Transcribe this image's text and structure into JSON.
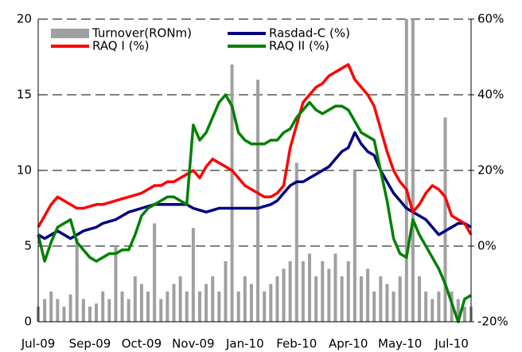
{
  "chart_data": {
    "type": "combo",
    "categories": [
      "Jul-09",
      null,
      null,
      null,
      null,
      null,
      null,
      null,
      "Sep-09",
      null,
      null,
      null,
      null,
      null,
      null,
      null,
      "Oct-09",
      null,
      null,
      null,
      null,
      null,
      null,
      null,
      "Nov-09",
      null,
      null,
      null,
      null,
      null,
      null,
      null,
      "Jan-10",
      null,
      null,
      null,
      null,
      null,
      null,
      null,
      "Feb-10",
      null,
      null,
      null,
      null,
      null,
      null,
      null,
      "Apr-10",
      null,
      null,
      null,
      null,
      null,
      null,
      null,
      "May-10",
      null,
      null,
      null,
      null,
      null,
      null,
      null,
      "Jul-10",
      null,
      null,
      null
    ],
    "ylim": [
      0,
      20
    ],
    "yticks": [
      0,
      5,
      10,
      15,
      20
    ],
    "y2lim": [
      -20,
      60
    ],
    "y2ticks": [
      {
        "value": -20,
        "label": "-20%"
      },
      {
        "value": 0,
        "label": "0%"
      },
      {
        "value": 20,
        "label": "20%"
      },
      {
        "value": 40,
        "label": "40%"
      },
      {
        "value": 60,
        "label": "60%"
      }
    ],
    "grid": true,
    "series": [
      {
        "name": "Turnover(RONm)",
        "type": "bar",
        "color": "#a0a0a0",
        "values": [
          1,
          1.5,
          2,
          1.5,
          1,
          1.8,
          5.5,
          1.5,
          1,
          1.2,
          2,
          1.5,
          5,
          2,
          1.5,
          3,
          2.5,
          2,
          6.5,
          1.5,
          2,
          2.5,
          3,
          2,
          6.2,
          2,
          2.5,
          3,
          2,
          4,
          17,
          2,
          3,
          2.5,
          16,
          2,
          2.5,
          3,
          3.5,
          4,
          10.5,
          4,
          4.5,
          3,
          4,
          3.5,
          4.5,
          3,
          4,
          10,
          3,
          3.5,
          2,
          3,
          2.5,
          2,
          3,
          20,
          20,
          3,
          2,
          1.5,
          2,
          13.5,
          2,
          1.5,
          1,
          1
        ]
      },
      {
        "name": "Rasdad-C (%)",
        "type": "line",
        "axis": "y2",
        "color": "#000080",
        "values": [
          3,
          2,
          3,
          4,
          3,
          2,
          3,
          4,
          4.5,
          5,
          6,
          6.5,
          7,
          8,
          9,
          9.5,
          10,
          10.5,
          11,
          11,
          11,
          11,
          11,
          11,
          10,
          9.5,
          9,
          9.5,
          10,
          10,
          10,
          10,
          10,
          10,
          10,
          10.5,
          11,
          12,
          14,
          16,
          17,
          17,
          18,
          19,
          20,
          21,
          23,
          25,
          26,
          30,
          27,
          25,
          24,
          20,
          17,
          14,
          12,
          10,
          9,
          8,
          7,
          5,
          3,
          4,
          5,
          6,
          6,
          5
        ]
      },
      {
        "name": "RAQ I (%)",
        "type": "line",
        "axis": "y2",
        "color": "#ff0000",
        "values": [
          5,
          8,
          11,
          13,
          12,
          11,
          10,
          10,
          10.5,
          11,
          11,
          11.5,
          12,
          12.5,
          13,
          13.5,
          14,
          15,
          16,
          16,
          17,
          17,
          18,
          19,
          20,
          18,
          21,
          23,
          22,
          21,
          20,
          18,
          16,
          15,
          14,
          13,
          13,
          14,
          16,
          26,
          32,
          38,
          40,
          42,
          43,
          45,
          46,
          47,
          48,
          44,
          42,
          40,
          37,
          31,
          25,
          20,
          17,
          15,
          9,
          11,
          14,
          16,
          15,
          13,
          8,
          7,
          6,
          3
        ]
      },
      {
        "name": "RAQ II (%)",
        "type": "line",
        "axis": "y2",
        "color": "#008000",
        "values": [
          3,
          -4,
          1,
          5,
          6,
          7,
          1,
          -1,
          -3,
          -4,
          -3,
          -2,
          -2,
          -1,
          -1,
          3,
          8,
          10,
          11,
          12,
          13,
          13,
          12,
          11,
          32,
          28,
          30,
          34,
          38,
          40,
          37,
          30,
          28,
          27,
          27,
          27,
          28,
          28,
          30,
          31,
          34,
          36,
          38,
          36,
          35,
          36,
          37,
          37,
          36,
          33,
          30,
          29,
          28,
          20,
          12,
          2,
          -2,
          -3,
          7,
          3,
          0,
          -3,
          -6,
          -10,
          -15,
          -20,
          -14,
          -13
        ]
      }
    ]
  }
}
